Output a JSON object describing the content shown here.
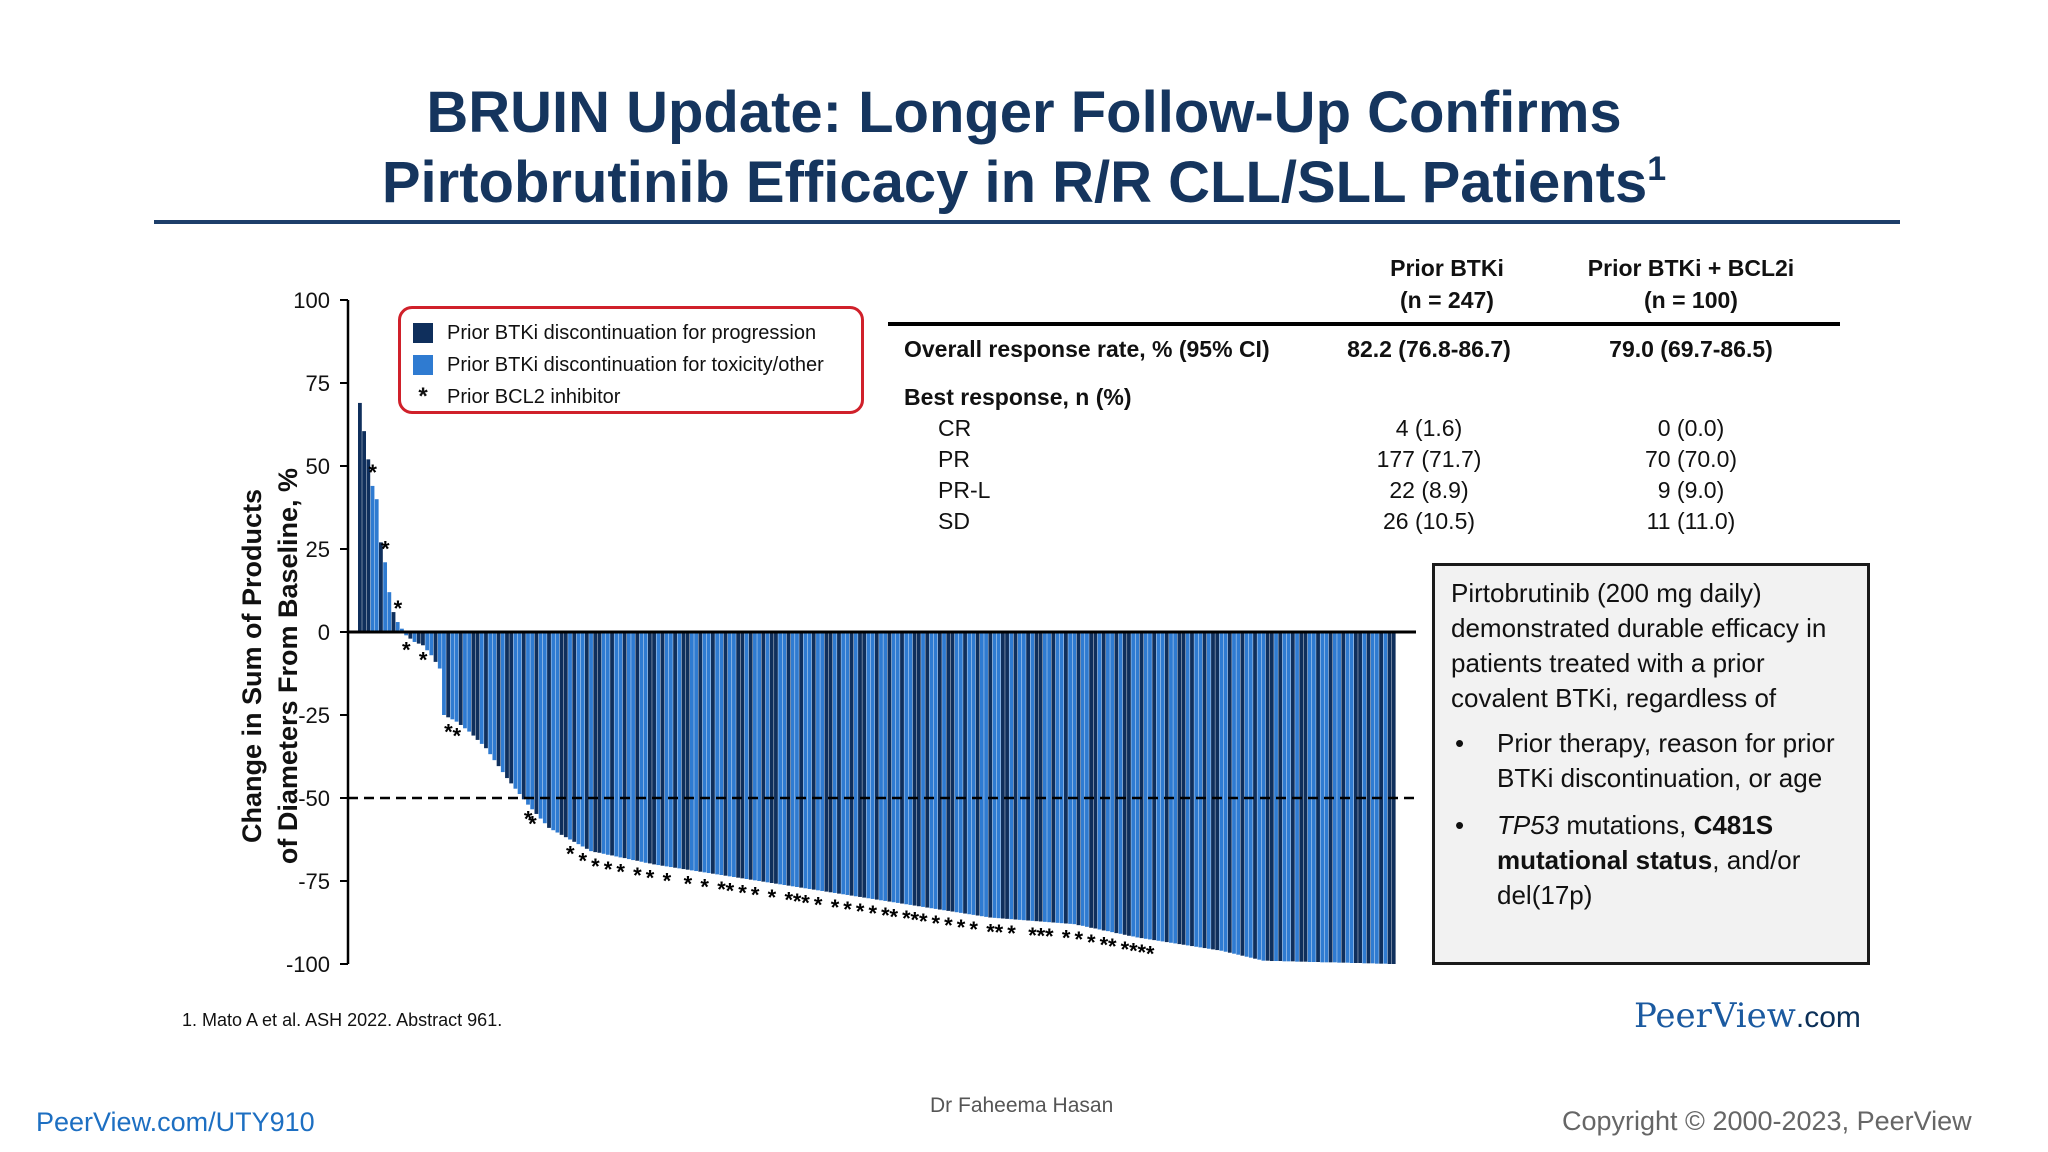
{
  "slide": {
    "title_line1": "BRUIN Update: Longer Follow-Up Confirms",
    "title_line2": "Pirtobrutinib Efficacy in R/R CLL/SLL Patients",
    "title_sup": "1",
    "footnote": "1. Mato A et al. ASH 2022. Abstract 961.",
    "brand_name": "PeerView",
    "brand_domain": ".com",
    "bottom_left": "PeerView.com/UTY910",
    "bottom_center": "Dr Faheema Hasan",
    "bottom_right": "Copyright © 2000-2023, PeerView"
  },
  "table": {
    "col1_header_line1": "Prior BTKi",
    "col1_header_line2": "(n = 247)",
    "col2_header_line1": "Prior BTKi + BCL2i",
    "col2_header_line2": "(n = 100)",
    "orr_label": "Overall response rate, % (95% CI)",
    "orr_col1": "82.2 (76.8-86.7)",
    "orr_col2": "79.0 (69.7-86.5)",
    "best_response_label": "Best response, n (%)",
    "rows": [
      {
        "label": "CR",
        "col1": "4 (1.6)",
        "col2": "0 (0.0)"
      },
      {
        "label": "PR",
        "col1": "177 (71.7)",
        "col2": "70 (70.0)"
      },
      {
        "label": "PR-L",
        "col1": "22 (8.9)",
        "col2": "9 (9.0)"
      },
      {
        "label": "SD",
        "col1": "26 (10.5)",
        "col2": "11 (11.0)"
      }
    ]
  },
  "callout": {
    "intro": "Pirtobrutinib (200 mg daily) demonstrated durable efficacy in patients treated with a prior covalent BTKi, regardless of",
    "bullet1": "Prior therapy, reason for prior BTKi discontinuation, or age",
    "bullet2_italic": "TP53",
    "bullet2_mid": " mutations, ",
    "bullet2_bold": "C481S mutational status",
    "bullet2_end": ", and/or del(17p)"
  },
  "colors": {
    "title": "#15355e",
    "progression": "#0f2f5c",
    "toxicity": "#2f7bd1",
    "legend_border": "#d0202a"
  },
  "chart_data": {
    "type": "bar",
    "title": "",
    "xlabel": "",
    "ylabel_line1": "Change in Sum of Products",
    "ylabel_line2": "of Diameters From Baseline, %",
    "ylim": [
      -100,
      100
    ],
    "yticks": [
      100,
      75,
      50,
      25,
      0,
      -25,
      -50,
      -75,
      -100
    ],
    "reference_line": -50,
    "legend": [
      {
        "key": "progression",
        "label": "Prior BTKi discontinuation for progression",
        "color": "#0f2f5c"
      },
      {
        "key": "toxicity",
        "label": "Prior BTKi discontinuation for toxicity/other",
        "color": "#2f7bd1"
      },
      {
        "key": "bcl2",
        "label": "Prior BCL2 inhibitor",
        "marker": "*"
      }
    ],
    "n_bars": 247,
    "waterfall_anchors": [
      [
        0,
        69
      ],
      [
        2,
        52
      ],
      [
        3,
        44
      ],
      [
        4,
        40
      ],
      [
        5,
        27
      ],
      [
        6,
        21
      ],
      [
        7,
        12
      ],
      [
        8,
        6
      ],
      [
        9,
        3
      ],
      [
        10,
        1
      ],
      [
        11,
        -1
      ],
      [
        13,
        -3
      ],
      [
        15,
        -4
      ],
      [
        17,
        -7
      ],
      [
        19,
        -11
      ],
      [
        20,
        -25
      ],
      [
        23,
        -27
      ],
      [
        26,
        -30
      ],
      [
        30,
        -35
      ],
      [
        35,
        -44
      ],
      [
        40,
        -52
      ],
      [
        45,
        -59
      ],
      [
        55,
        -66
      ],
      [
        70,
        -70
      ],
      [
        90,
        -74
      ],
      [
        110,
        -78
      ],
      [
        130,
        -82
      ],
      [
        150,
        -86
      ],
      [
        170,
        -88
      ],
      [
        185,
        -92
      ],
      [
        205,
        -96
      ],
      [
        215,
        -99
      ],
      [
        246,
        -100
      ]
    ],
    "series_pattern_note": "",
    "bcl2_star_indices": [
      3,
      6,
      9,
      11,
      15,
      21,
      23,
      40,
      41,
      50,
      53,
      56,
      59,
      62,
      66,
      69,
      73,
      78,
      82,
      86,
      88,
      91,
      94,
      98,
      102,
      104,
      106,
      109,
      113,
      116,
      119,
      122,
      125,
      127,
      130,
      132,
      134,
      137,
      140,
      143,
      146,
      150,
      152,
      155,
      160,
      162,
      164,
      168,
      171,
      174,
      177,
      179,
      182,
      184,
      186,
      188
    ]
  }
}
